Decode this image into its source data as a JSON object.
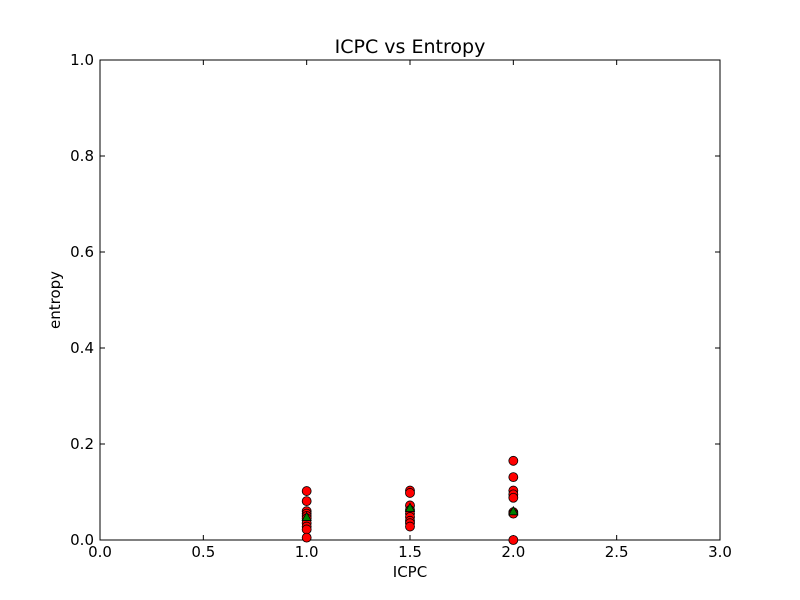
{
  "chart_data": {
    "type": "scatter",
    "title": "ICPC vs Entropy",
    "xlabel": "ICPC",
    "ylabel": "entropy",
    "xlim": [
      0.0,
      3.0
    ],
    "ylim": [
      0.0,
      1.0
    ],
    "xticks": [
      "0.0",
      "0.5",
      "1.0",
      "1.5",
      "2.0",
      "2.5",
      "3.0"
    ],
    "yticks": [
      "0.0",
      "0.2",
      "0.4",
      "0.6",
      "0.8",
      "1.0"
    ],
    "grid": false,
    "series": [
      {
        "marker": "circle",
        "color": "#ff0000",
        "points": [
          [
            1.0,
            0.102
          ],
          [
            1.0,
            0.081
          ],
          [
            1.0,
            0.06
          ],
          [
            1.0,
            0.055
          ],
          [
            1.0,
            0.05
          ],
          [
            1.0,
            0.045
          ],
          [
            1.0,
            0.035
          ],
          [
            1.0,
            0.028
          ],
          [
            1.0,
            0.022
          ],
          [
            1.0,
            0.005
          ],
          [
            1.5,
            0.103
          ],
          [
            1.5,
            0.098
          ],
          [
            1.5,
            0.072
          ],
          [
            1.5,
            0.062
          ],
          [
            1.5,
            0.055
          ],
          [
            1.5,
            0.048
          ],
          [
            1.5,
            0.04
          ],
          [
            1.5,
            0.035
          ],
          [
            1.5,
            0.028
          ],
          [
            2.0,
            0.165
          ],
          [
            2.0,
            0.131
          ],
          [
            2.0,
            0.103
          ],
          [
            2.0,
            0.095
          ],
          [
            2.0,
            0.088
          ],
          [
            2.0,
            0.058
          ],
          [
            2.0,
            0.055
          ],
          [
            2.0,
            0.0
          ]
        ]
      },
      {
        "marker": "triangle",
        "color": "#008000",
        "points": [
          [
            1.0,
            0.048
          ],
          [
            1.5,
            0.067
          ],
          [
            2.0,
            0.06
          ]
        ]
      }
    ]
  }
}
